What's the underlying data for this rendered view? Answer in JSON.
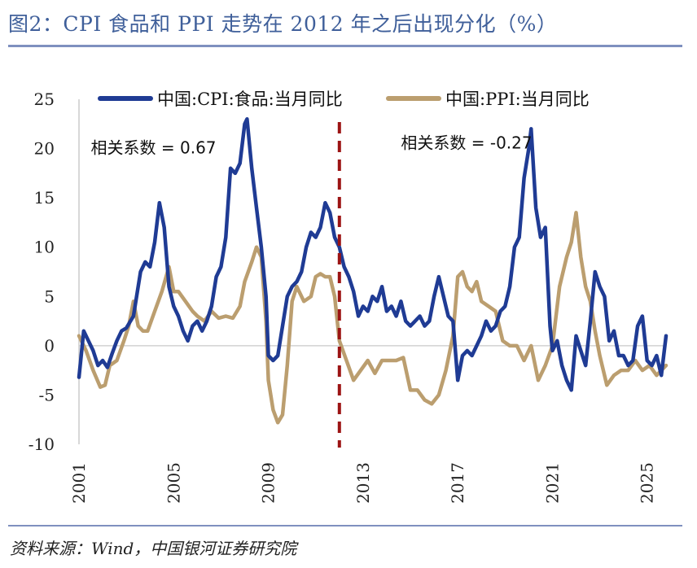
{
  "page": {
    "title": "图2：CPI 食品和 PPI 走势在 2012 年之后出现分化（%）",
    "source": "资料来源：Wind，中国银河证券研究院"
  },
  "chart_data": {
    "type": "line",
    "title": "图2：CPI 食品和 PPI 走势在 2012 年之后出现分化（%）",
    "xlabel": "",
    "ylabel": "",
    "ylim": [
      -10,
      25
    ],
    "xlim": [
      2001,
      2025.8
    ],
    "yticks": [
      "25",
      "20",
      "15",
      "10",
      "5",
      "0",
      "-5",
      "-10"
    ],
    "xticks": [
      "2001",
      "2005",
      "2009",
      "2013",
      "2017",
      "2021",
      "2025"
    ],
    "legend_position": "top",
    "series": [
      {
        "name": "中国:CPI:食品:当月同比",
        "color": "#1f3b94",
        "x": [
          2001.0,
          2001.2,
          2001.4,
          2001.6,
          2001.8,
          2002.0,
          2002.2,
          2002.4,
          2002.6,
          2002.8,
          2003.0,
          2003.3,
          2003.6,
          2003.8,
          2004.0,
          2004.2,
          2004.4,
          2004.6,
          2004.8,
          2005.0,
          2005.2,
          2005.4,
          2005.6,
          2005.8,
          2006.0,
          2006.2,
          2006.4,
          2006.6,
          2006.8,
          2007.0,
          2007.2,
          2007.4,
          2007.6,
          2007.8,
          2008.0,
          2008.1,
          2008.3,
          2008.5,
          2008.7,
          2008.9,
          2009.0,
          2009.2,
          2009.4,
          2009.6,
          2009.8,
          2010.0,
          2010.2,
          2010.4,
          2010.6,
          2010.8,
          2011.0,
          2011.2,
          2011.4,
          2011.6,
          2011.8,
          2012.0,
          2012.2,
          2012.4,
          2012.6,
          2012.8,
          2013.0,
          2013.2,
          2013.4,
          2013.6,
          2013.8,
          2014.0,
          2014.2,
          2014.4,
          2014.6,
          2014.8,
          2015.0,
          2015.2,
          2015.4,
          2015.6,
          2015.8,
          2016.0,
          2016.2,
          2016.4,
          2016.6,
          2016.8,
          2017.0,
          2017.2,
          2017.4,
          2017.6,
          2017.8,
          2018.0,
          2018.2,
          2018.4,
          2018.6,
          2018.8,
          2019.0,
          2019.2,
          2019.4,
          2019.6,
          2019.8,
          2020.0,
          2020.1,
          2020.3,
          2020.5,
          2020.7,
          2020.9,
          2021.0,
          2021.2,
          2021.4,
          2021.6,
          2021.8,
          2022.0,
          2022.2,
          2022.4,
          2022.6,
          2022.8,
          2023.0,
          2023.2,
          2023.4,
          2023.6,
          2023.8,
          2024.0,
          2024.2,
          2024.4,
          2024.6,
          2024.8,
          2025.0,
          2025.2,
          2025.4,
          2025.6,
          2025.8
        ],
        "values": [
          -3.2,
          1.5,
          0.5,
          -0.5,
          -2.0,
          -1.5,
          -2.2,
          -0.8,
          0.5,
          1.5,
          1.8,
          3.0,
          7.5,
          8.5,
          8.0,
          10.5,
          14.5,
          12.0,
          6.0,
          4.0,
          3.0,
          1.5,
          0.5,
          2.0,
          2.5,
          1.5,
          2.5,
          4.0,
          7.0,
          8.0,
          11.0,
          18.0,
          17.5,
          18.5,
          22.5,
          23.0,
          18.0,
          14.0,
          10.0,
          5.0,
          -1.0,
          -1.5,
          -1.0,
          2.0,
          5.0,
          6.0,
          6.5,
          7.5,
          10.0,
          11.5,
          11.0,
          12.0,
          14.5,
          13.5,
          11.0,
          10.0,
          8.0,
          7.0,
          5.5,
          3.0,
          4.0,
          3.5,
          5.0,
          4.5,
          6.0,
          3.5,
          4.0,
          3.0,
          4.5,
          2.5,
          2.0,
          2.5,
          3.0,
          2.0,
          2.5,
          5.0,
          7.0,
          5.0,
          3.0,
          2.5,
          -3.5,
          -1.0,
          -0.5,
          -1.0,
          0.0,
          1.0,
          2.5,
          1.5,
          2.0,
          3.5,
          4.0,
          6.0,
          10.0,
          11.0,
          17.0,
          20.0,
          22.0,
          14.0,
          11.0,
          12.0,
          2.0,
          -0.5,
          0.5,
          -2.0,
          -3.5,
          -4.5,
          1.0,
          -0.5,
          -2.0,
          2.5,
          7.5,
          6.0,
          5.0,
          0.5,
          1.5,
          -1.0,
          -1.0,
          -2.0,
          -1.5,
          2.0,
          3.0,
          -1.5,
          -2.0,
          -1.0,
          -3.0,
          1.0
        ]
      },
      {
        "name": "中国:PPI:当月同比",
        "color": "#bb9e6f",
        "x": [
          2001.0,
          2001.3,
          2001.6,
          2001.9,
          2002.1,
          2002.3,
          2002.6,
          2002.9,
          2003.1,
          2003.3,
          2003.5,
          2003.7,
          2003.9,
          2004.2,
          2004.5,
          2004.8,
          2005.0,
          2005.2,
          2005.5,
          2005.8,
          2006.0,
          2006.3,
          2006.6,
          2006.9,
          2007.2,
          2007.5,
          2007.8,
          2008.0,
          2008.3,
          2008.5,
          2008.7,
          2008.9,
          2009.0,
          2009.2,
          2009.4,
          2009.6,
          2009.8,
          2010.0,
          2010.2,
          2010.5,
          2010.8,
          2011.0,
          2011.2,
          2011.4,
          2011.6,
          2011.8,
          2012.0,
          2012.3,
          2012.6,
          2012.9,
          2013.2,
          2013.5,
          2013.8,
          2014.1,
          2014.4,
          2014.7,
          2015.0,
          2015.3,
          2015.6,
          2015.9,
          2016.2,
          2016.5,
          2016.8,
          2017.0,
          2017.2,
          2017.4,
          2017.6,
          2017.8,
          2018.0,
          2018.3,
          2018.6,
          2018.9,
          2019.2,
          2019.5,
          2019.8,
          2020.1,
          2020.4,
          2020.7,
          2021.0,
          2021.3,
          2021.6,
          2021.8,
          2022.0,
          2022.2,
          2022.4,
          2022.6,
          2022.8,
          2023.0,
          2023.3,
          2023.6,
          2023.9,
          2024.2,
          2024.5,
          2024.8,
          2025.1,
          2025.4,
          2025.8
        ],
        "values": [
          1.0,
          -0.5,
          -2.5,
          -4.2,
          -4.0,
          -2.0,
          -1.5,
          0.5,
          2.0,
          4.5,
          2.0,
          1.5,
          1.5,
          3.5,
          5.5,
          8.0,
          5.5,
          5.5,
          4.5,
          3.5,
          3.0,
          2.5,
          3.5,
          2.8,
          3.0,
          2.8,
          4.0,
          6.5,
          8.5,
          10.0,
          9.0,
          2.5,
          -3.5,
          -6.5,
          -7.8,
          -7.0,
          -2.0,
          4.5,
          6.0,
          4.5,
          5.0,
          7.0,
          7.3,
          7.0,
          7.0,
          5.0,
          0.5,
          -1.5,
          -3.5,
          -2.5,
          -1.5,
          -2.8,
          -1.5,
          -1.5,
          -1.5,
          -1.2,
          -4.5,
          -4.5,
          -5.5,
          -5.9,
          -5.0,
          -2.5,
          1.0,
          7.0,
          7.5,
          6.0,
          5.5,
          6.5,
          4.5,
          4.0,
          3.5,
          0.5,
          0.0,
          0.0,
          -1.5,
          0.0,
          -3.5,
          -2.0,
          0.0,
          6.0,
          9.0,
          10.5,
          13.5,
          9.0,
          6.0,
          4.5,
          1.5,
          -1.0,
          -4.0,
          -3.0,
          -2.5,
          -2.5,
          -1.5,
          -2.5,
          -2.0,
          -3.0,
          -2.0
        ]
      }
    ],
    "vline": {
      "x": 2012.0,
      "color": "#9c1414",
      "style": "dashed"
    },
    "annotations": [
      {
        "text": "相关系数 = 0.67",
        "x": 2001.5,
        "y": 19.5
      },
      {
        "text": "相关系数 = -0.27",
        "x": 2014.6,
        "y": 20.0
      }
    ]
  }
}
